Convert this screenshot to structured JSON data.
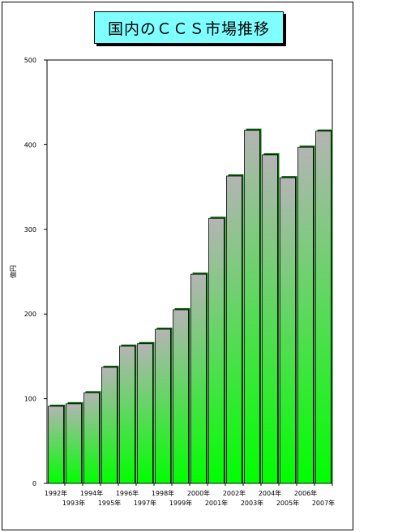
{
  "chart_data": {
    "type": "bar",
    "title": "国内のＣＣＳ市場推移",
    "ylabel": "億円",
    "xlabel": "",
    "ylim": [
      0,
      500
    ],
    "yticks": [
      0,
      100,
      200,
      300,
      400,
      500
    ],
    "grid": false,
    "categories": [
      "1992年",
      "1993年",
      "1994年",
      "1995年",
      "1996年",
      "1997年",
      "1998年",
      "1999年",
      "2000年",
      "2001年",
      "2002年",
      "2003年",
      "2004年",
      "2005年",
      "2006年",
      "2007年"
    ],
    "values": [
      91,
      94,
      107,
      137,
      162,
      165,
      182,
      205,
      247,
      313,
      363,
      417,
      388,
      361,
      397,
      416
    ],
    "colors": {
      "bar_top": "#b4b4b4",
      "bar_bottom": "#00ff00",
      "title_bg": "#7fffff"
    }
  }
}
